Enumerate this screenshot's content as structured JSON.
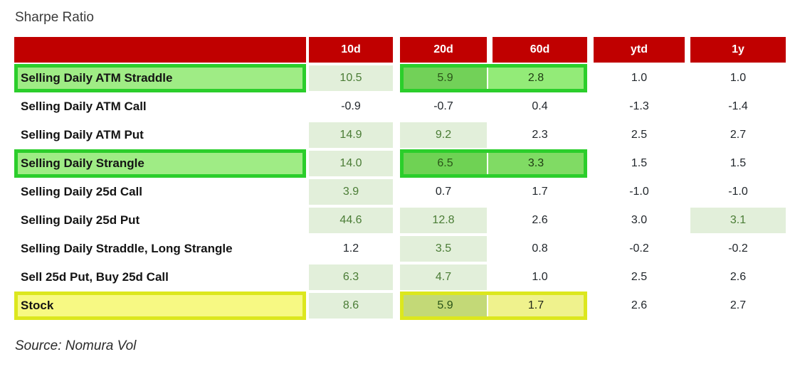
{
  "title": "Sharpe Ratio",
  "source": "Source: Nomura Vol",
  "chart_data": {
    "type": "table",
    "title": "Sharpe Ratio",
    "columns": [
      "10d",
      "20d",
      "60d",
      "ytd",
      "1y"
    ],
    "rows": [
      {
        "label": "Selling Daily ATM Straddle",
        "values": [
          "10.5",
          "5.9",
          "2.8",
          "1.0",
          "1.0"
        ],
        "highlight_box": "green",
        "box_columns": [
          "20d",
          "60d"
        ],
        "shaded_columns": [
          "10d"
        ]
      },
      {
        "label": "Selling Daily ATM Call",
        "values": [
          "-0.9",
          "-0.7",
          "0.4",
          "-1.3",
          "-1.4"
        ],
        "highlight_box": null,
        "shaded_columns": []
      },
      {
        "label": "Selling Daily ATM Put",
        "values": [
          "14.9",
          "9.2",
          "2.3",
          "2.5",
          "2.7"
        ],
        "highlight_box": null,
        "shaded_columns": [
          "10d",
          "20d"
        ]
      },
      {
        "label": "Selling Daily Strangle",
        "values": [
          "14.0",
          "6.5",
          "3.3",
          "1.5",
          "1.5"
        ],
        "highlight_box": "green",
        "box_columns": [
          "20d",
          "60d"
        ],
        "shaded_columns": [
          "10d"
        ]
      },
      {
        "label": "Selling Daily 25d Call",
        "values": [
          "3.9",
          "0.7",
          "1.7",
          "-1.0",
          "-1.0"
        ],
        "highlight_box": null,
        "shaded_columns": [
          "10d"
        ]
      },
      {
        "label": "Selling Daily 25d Put",
        "values": [
          "44.6",
          "12.8",
          "2.6",
          "3.0",
          "3.1"
        ],
        "highlight_box": null,
        "shaded_columns": [
          "10d",
          "20d",
          "1y"
        ]
      },
      {
        "label": "Selling Daily Straddle, Long Strangle",
        "values": [
          "1.2",
          "3.5",
          "0.8",
          "-0.2",
          "-0.2"
        ],
        "highlight_box": null,
        "shaded_columns": [
          "20d"
        ]
      },
      {
        "label": "Sell 25d Put, Buy 25d Call",
        "values": [
          "6.3",
          "4.7",
          "1.0",
          "2.5",
          "2.6"
        ],
        "highlight_box": null,
        "shaded_columns": [
          "10d",
          "20d"
        ]
      },
      {
        "label": "Stock",
        "values": [
          "8.6",
          "5.9",
          "1.7",
          "2.6",
          "2.7"
        ],
        "highlight_box": "yellow",
        "box_columns": [
          "20d",
          "60d"
        ],
        "shaded_columns": [
          "10d"
        ]
      }
    ],
    "colors": {
      "header_bg": "#c00000",
      "header_text": "#ffffff",
      "shaded_cell_bg": "#e2efda",
      "shaded_cell_text": "#4a7c35",
      "number_text": "#21262b",
      "label_text": "#141414",
      "green_box_border": "#2bce2b",
      "green_label_fill": "#9fec85",
      "green_cell_dark": "#72d158",
      "green_cell_light": "#93eb78",
      "yellow_box_border": "#dce71e",
      "yellow_label_fill": "#f7f983",
      "yellow_cell_olive": "#c3d977",
      "yellow_cell_light": "#eff28d",
      "title_text": "#3c3c3c"
    }
  }
}
